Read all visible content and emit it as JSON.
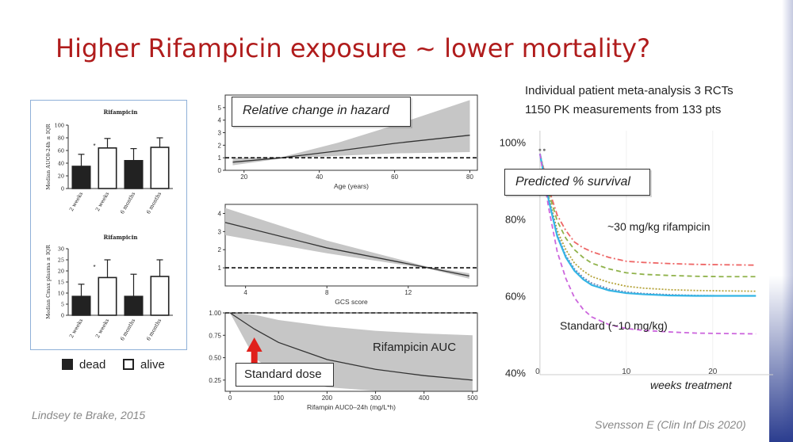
{
  "slide": {
    "title": "Higher Rifampicin exposure ~ lower mortality?",
    "left_citation": "Lindsey te Brake, 2015",
    "right_citation": "Svensson E (Clin Inf Dis 2020)",
    "meta_line1": "Individual patient meta-analysis 3 RCTs",
    "meta_line2": "1150 PK measurements from 133 pts",
    "legend": {
      "dead": "dead",
      "alive": "alive"
    }
  },
  "callouts": {
    "hazard": "Relative change in hazard",
    "auc": "Rifampicin AUC",
    "standard_dose": "Standard dose",
    "survival": "Predicted % survival",
    "high_dose": "~30 mg/kg rifampicin",
    "standard": "Standard (~10 mg/kg)",
    "weeks": "weeks treatment"
  },
  "colors": {
    "title": "#b01c1c",
    "arrow": "#e0201b",
    "band": "#c6c6c6",
    "survival_standard": "#cc66dd",
    "survival_mid_1": "#33b5e5",
    "survival_mid_2": "#6f86b8",
    "survival_high_1": "#b5a33a",
    "survival_high_2": "#8fb24a",
    "survival_high_3": "#ee6666"
  },
  "chart_data": [
    {
      "type": "bar",
      "title": "Rifampicin",
      "ylabel": "Median AUC0-24h ± IQR",
      "ylim": [
        0,
        100
      ],
      "yticks": [
        "0",
        "20",
        "40",
        "60",
        "80",
        "100"
      ],
      "categories": [
        "2 weeks",
        "2 weeks",
        "6 months",
        "6 months"
      ],
      "fills": [
        "dead",
        "alive",
        "dead",
        "alive"
      ],
      "values": [
        35,
        64,
        44,
        65
      ],
      "err_high": [
        54,
        79,
        63,
        80
      ],
      "annotation": "*"
    },
    {
      "type": "bar",
      "title": "Rifampicin",
      "ylabel": "Median Cmax plasma ± IQR",
      "ylim": [
        0,
        30
      ],
      "yticks": [
        "0",
        "5",
        "10",
        "15",
        "20",
        "25",
        "30"
      ],
      "categories": [
        "2 weeks",
        "2 weeks",
        "6 months",
        "6 months"
      ],
      "fills": [
        "dead",
        "alive",
        "dead",
        "alive"
      ],
      "values": [
        8.5,
        17,
        8.5,
        17.5
      ],
      "err_high": [
        14,
        25,
        18.5,
        25
      ],
      "annotation": "*"
    },
    {
      "type": "line",
      "xlabel": "Age (years)",
      "xlim": [
        15,
        82
      ],
      "xticks": [
        "20",
        "40",
        "60",
        "80"
      ],
      "ylim": [
        0,
        6
      ],
      "yticks": [
        "0",
        "1",
        "2",
        "3",
        "4",
        "5"
      ],
      "reference_y": 1,
      "x": [
        17,
        30,
        45,
        60,
        80
      ],
      "y": [
        0.65,
        1.0,
        1.55,
        2.15,
        2.8
      ],
      "band_low": [
        0.4,
        0.95,
        1.15,
        1.35,
        1.45
      ],
      "band_high": [
        1.0,
        1.05,
        2.2,
        3.6,
        5.6
      ]
    },
    {
      "type": "line",
      "xlabel": "GCS score",
      "xlim": [
        3,
        15.4
      ],
      "xticks": [
        "4",
        "8",
        "12"
      ],
      "ylim": [
        0,
        4.5
      ],
      "yticks": [
        "1",
        "2",
        "3",
        "4"
      ],
      "reference_y": 1,
      "x": [
        3,
        8,
        13,
        15
      ],
      "y": [
        3.5,
        2.1,
        1.0,
        0.55
      ],
      "band_low": [
        2.8,
        1.8,
        0.95,
        0.4
      ],
      "band_high": [
        4.3,
        2.5,
        1.05,
        0.7
      ]
    },
    {
      "type": "line",
      "xlabel": "Rifampin AUC0–24h (mg/L*h)",
      "xlim": [
        -10,
        510
      ],
      "xticks": [
        "0",
        "100",
        "200",
        "300",
        "400",
        "500"
      ],
      "ylim": [
        0.125,
        1.0
      ],
      "yticks": [
        "0.25",
        "0.50",
        "0.75",
        "1.00"
      ],
      "reference_y": 1.0,
      "x": [
        0,
        50,
        100,
        200,
        300,
        400,
        500
      ],
      "y": [
        1.0,
        0.82,
        0.67,
        0.48,
        0.37,
        0.3,
        0.25
      ],
      "band_low": [
        1.0,
        0.5,
        0.3,
        0.17,
        0.13,
        0.13,
        0.13
      ],
      "band_high": [
        1.0,
        0.98,
        0.92,
        0.85,
        0.8,
        0.77,
        0.75
      ]
    },
    {
      "type": "line",
      "xlabel": "weeks treatment",
      "ylabel": "Predicted % survival",
      "xlim": [
        -1,
        27
      ],
      "xticks": [
        "10",
        "20"
      ],
      "ylim": [
        37,
        103
      ],
      "yticks": [
        "40%",
        "60%",
        "80%",
        "100%"
      ],
      "x": [
        0,
        1,
        2,
        3,
        4,
        5,
        6,
        8,
        10,
        12,
        15,
        18,
        21,
        25
      ],
      "series": [
        {
          "color": "#ee6666",
          "dash": "dashdot",
          "values": [
            97,
            88,
            81,
            77,
            74,
            72.5,
            71.5,
            70,
            69,
            68.7,
            68.4,
            68.2,
            68.1,
            68
          ]
        },
        {
          "color": "#8fb24a",
          "dash": "dash",
          "values": [
            97,
            87,
            79.5,
            75,
            72,
            70,
            68.5,
            67,
            66,
            65.6,
            65.3,
            65.1,
            65,
            65
          ]
        },
        {
          "color": "#b5a33a",
          "dash": "dot",
          "values": [
            97,
            86,
            77,
            72,
            68.5,
            66.5,
            65,
            63.5,
            62.5,
            62,
            61.6,
            61.4,
            61.3,
            61.2
          ]
        },
        {
          "color": "#6f86b8",
          "dash": "dot",
          "values": [
            97,
            85.5,
            76,
            70.5,
            67,
            64.8,
            63.3,
            61.8,
            61,
            60.6,
            60.3,
            60.1,
            60,
            60
          ]
        },
        {
          "color": "#33b5e5",
          "dash": "solid",
          "values": [
            97,
            85,
            75.5,
            70,
            66.5,
            64.3,
            62.8,
            61.4,
            60.7,
            60.4,
            60.1,
            60,
            60,
            60
          ]
        },
        {
          "color": "#cc66dd",
          "dash": "dash",
          "values": [
            97,
            83,
            71.5,
            64.5,
            59.5,
            56.5,
            54.5,
            52.5,
            51.5,
            51,
            50.6,
            50.3,
            50.2,
            50.1
          ]
        }
      ]
    }
  ]
}
